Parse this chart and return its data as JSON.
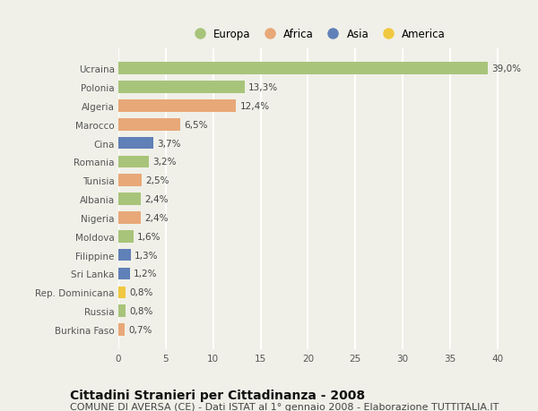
{
  "categories": [
    "Ucraina",
    "Polonia",
    "Algeria",
    "Marocco",
    "Cina",
    "Romania",
    "Tunisia",
    "Albania",
    "Nigeria",
    "Moldova",
    "Filippine",
    "Sri Lanka",
    "Rep. Dominicana",
    "Russia",
    "Burkina Faso"
  ],
  "values": [
    39.0,
    13.3,
    12.4,
    6.5,
    3.7,
    3.2,
    2.5,
    2.4,
    2.4,
    1.6,
    1.3,
    1.2,
    0.8,
    0.8,
    0.7
  ],
  "labels": [
    "39,0%",
    "13,3%",
    "12,4%",
    "6,5%",
    "3,7%",
    "3,2%",
    "2,5%",
    "2,4%",
    "2,4%",
    "1,6%",
    "1,3%",
    "1,2%",
    "0,8%",
    "0,8%",
    "0,7%"
  ],
  "continents": [
    "Europa",
    "Europa",
    "Africa",
    "Africa",
    "Asia",
    "Europa",
    "Africa",
    "Europa",
    "Africa",
    "Europa",
    "Asia",
    "Asia",
    "America",
    "Europa",
    "Africa"
  ],
  "continent_colors": {
    "Europa": "#a8c47a",
    "Africa": "#e8a878",
    "Asia": "#6080b8",
    "America": "#f0c840"
  },
  "legend_order": [
    "Europa",
    "Africa",
    "Asia",
    "America"
  ],
  "xlim": [
    0,
    42
  ],
  "xticks": [
    0,
    5,
    10,
    15,
    20,
    25,
    30,
    35,
    40
  ],
  "title": "Cittadini Stranieri per Cittadinanza - 2008",
  "subtitle": "COMUNE DI AVERSA (CE) - Dati ISTAT al 1° gennaio 2008 - Elaborazione TUTTITALIA.IT",
  "background_color": "#f0f0e8",
  "bar_height": 0.65,
  "grid_color": "#ffffff",
  "title_fontsize": 10,
  "subtitle_fontsize": 8,
  "label_fontsize": 7.5,
  "tick_fontsize": 7.5,
  "legend_fontsize": 8.5
}
